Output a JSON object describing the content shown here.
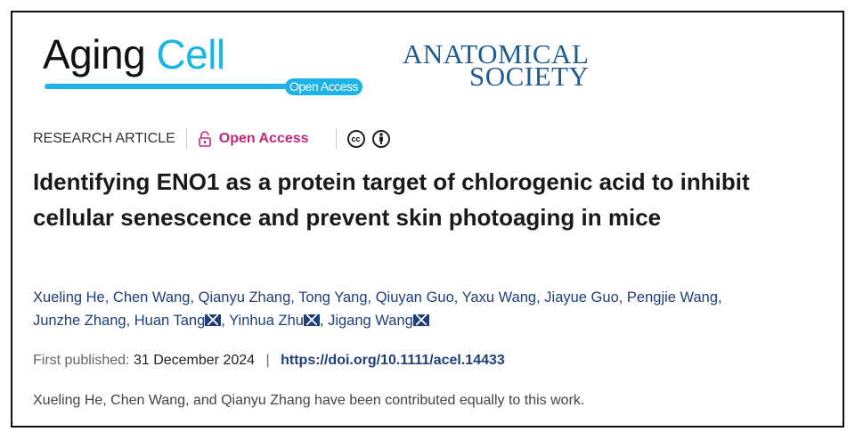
{
  "logo": {
    "aging": "Aging",
    "cell": "Cell",
    "open_access": "Open Access"
  },
  "society": {
    "line1": "ANATOMICAL",
    "line2": "SOCIETY"
  },
  "meta": {
    "type": "RESEARCH ARTICLE",
    "open_access": "Open Access",
    "license_icons": [
      "cc-icon",
      "attribution-icon"
    ]
  },
  "title": "Identifying ENO1 as a protein target of chlorogenic acid to inhibit cellular senescence and prevent skin photoaging in mice",
  "authors": [
    "Xueling He",
    "Chen Wang",
    "Qianyu Zhang",
    "Tong Yang",
    "Qiuyan Guo",
    "Yaxu Wang",
    "Jiayue Guo",
    "Pengjie Wang",
    "Junzhe Zhang",
    "Huan Tang",
    "Yinhua Zhu",
    "Jigang Wang"
  ],
  "published": {
    "label": "First published:",
    "date": "31 December 2024",
    "separator": "|",
    "doi": "https://doi.org/10.1111/acel.14433"
  },
  "note": "Xueling He, Chen Wang, and Qianyu Zhang have been contributed equally to this work.",
  "colors": {
    "cyan": "#1cb4e6",
    "magenta": "#c4287a",
    "link": "#1e3f7a",
    "society": "#1f5c8f"
  }
}
